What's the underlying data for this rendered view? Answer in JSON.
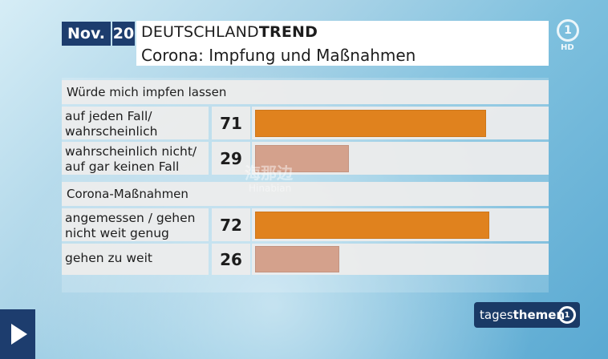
{
  "header": {
    "month": "Nov.",
    "year": "20",
    "title_regular": "DEUTSCHLAND",
    "title_bold": "TREND",
    "subtitle": "Corona: Impfung und Maßnahmen"
  },
  "branding": {
    "channel_logo": "1",
    "hd_label": "HD",
    "show_regular": "tages",
    "show_bold": "themen",
    "show_logo": "1",
    "watermark": "海那边",
    "watermark_sub": "Hinabian"
  },
  "colors": {
    "primary_bar": "#e0821e",
    "secondary_bar": "#d4a18c",
    "navy": "#1d3d6e"
  },
  "icons": {
    "play": "play-icon"
  },
  "sections": [
    {
      "label": "Würde mich impfen lassen"
    },
    {
      "label": "Corona-Maßnahmen"
    }
  ],
  "chart_data": {
    "type": "bar",
    "orientation": "horizontal",
    "title": "Corona: Impfung und Maßnahmen",
    "unit": "",
    "xlim": [
      0,
      100
    ],
    "groups": [
      {
        "name": "Würde mich impfen lassen",
        "categories": [
          "auf jeden Fall/ wahrscheinlich",
          "wahrscheinlich nicht/ auf gar keinen Fall"
        ],
        "values": [
          71,
          29
        ],
        "colors": [
          "#e0821e",
          "#d4a18c"
        ]
      },
      {
        "name": "Corona-Maßnahmen",
        "categories": [
          "angemessen / gehen nicht weit genug",
          "gehen zu weit"
        ],
        "values": [
          72,
          26
        ],
        "colors": [
          "#e0821e",
          "#d4a18c"
        ]
      }
    ]
  },
  "rows": [
    {
      "line1": "auf jeden Fall/",
      "line2": "wahrscheinlich",
      "value": "71"
    },
    {
      "line1": "wahrscheinlich nicht/",
      "line2": "auf gar keinen Fall",
      "value": "29"
    },
    {
      "line1": "angemessen / gehen",
      "line2": "nicht weit genug",
      "value": "72"
    },
    {
      "line1": "gehen zu weit",
      "line2": "",
      "value": "26"
    }
  ]
}
